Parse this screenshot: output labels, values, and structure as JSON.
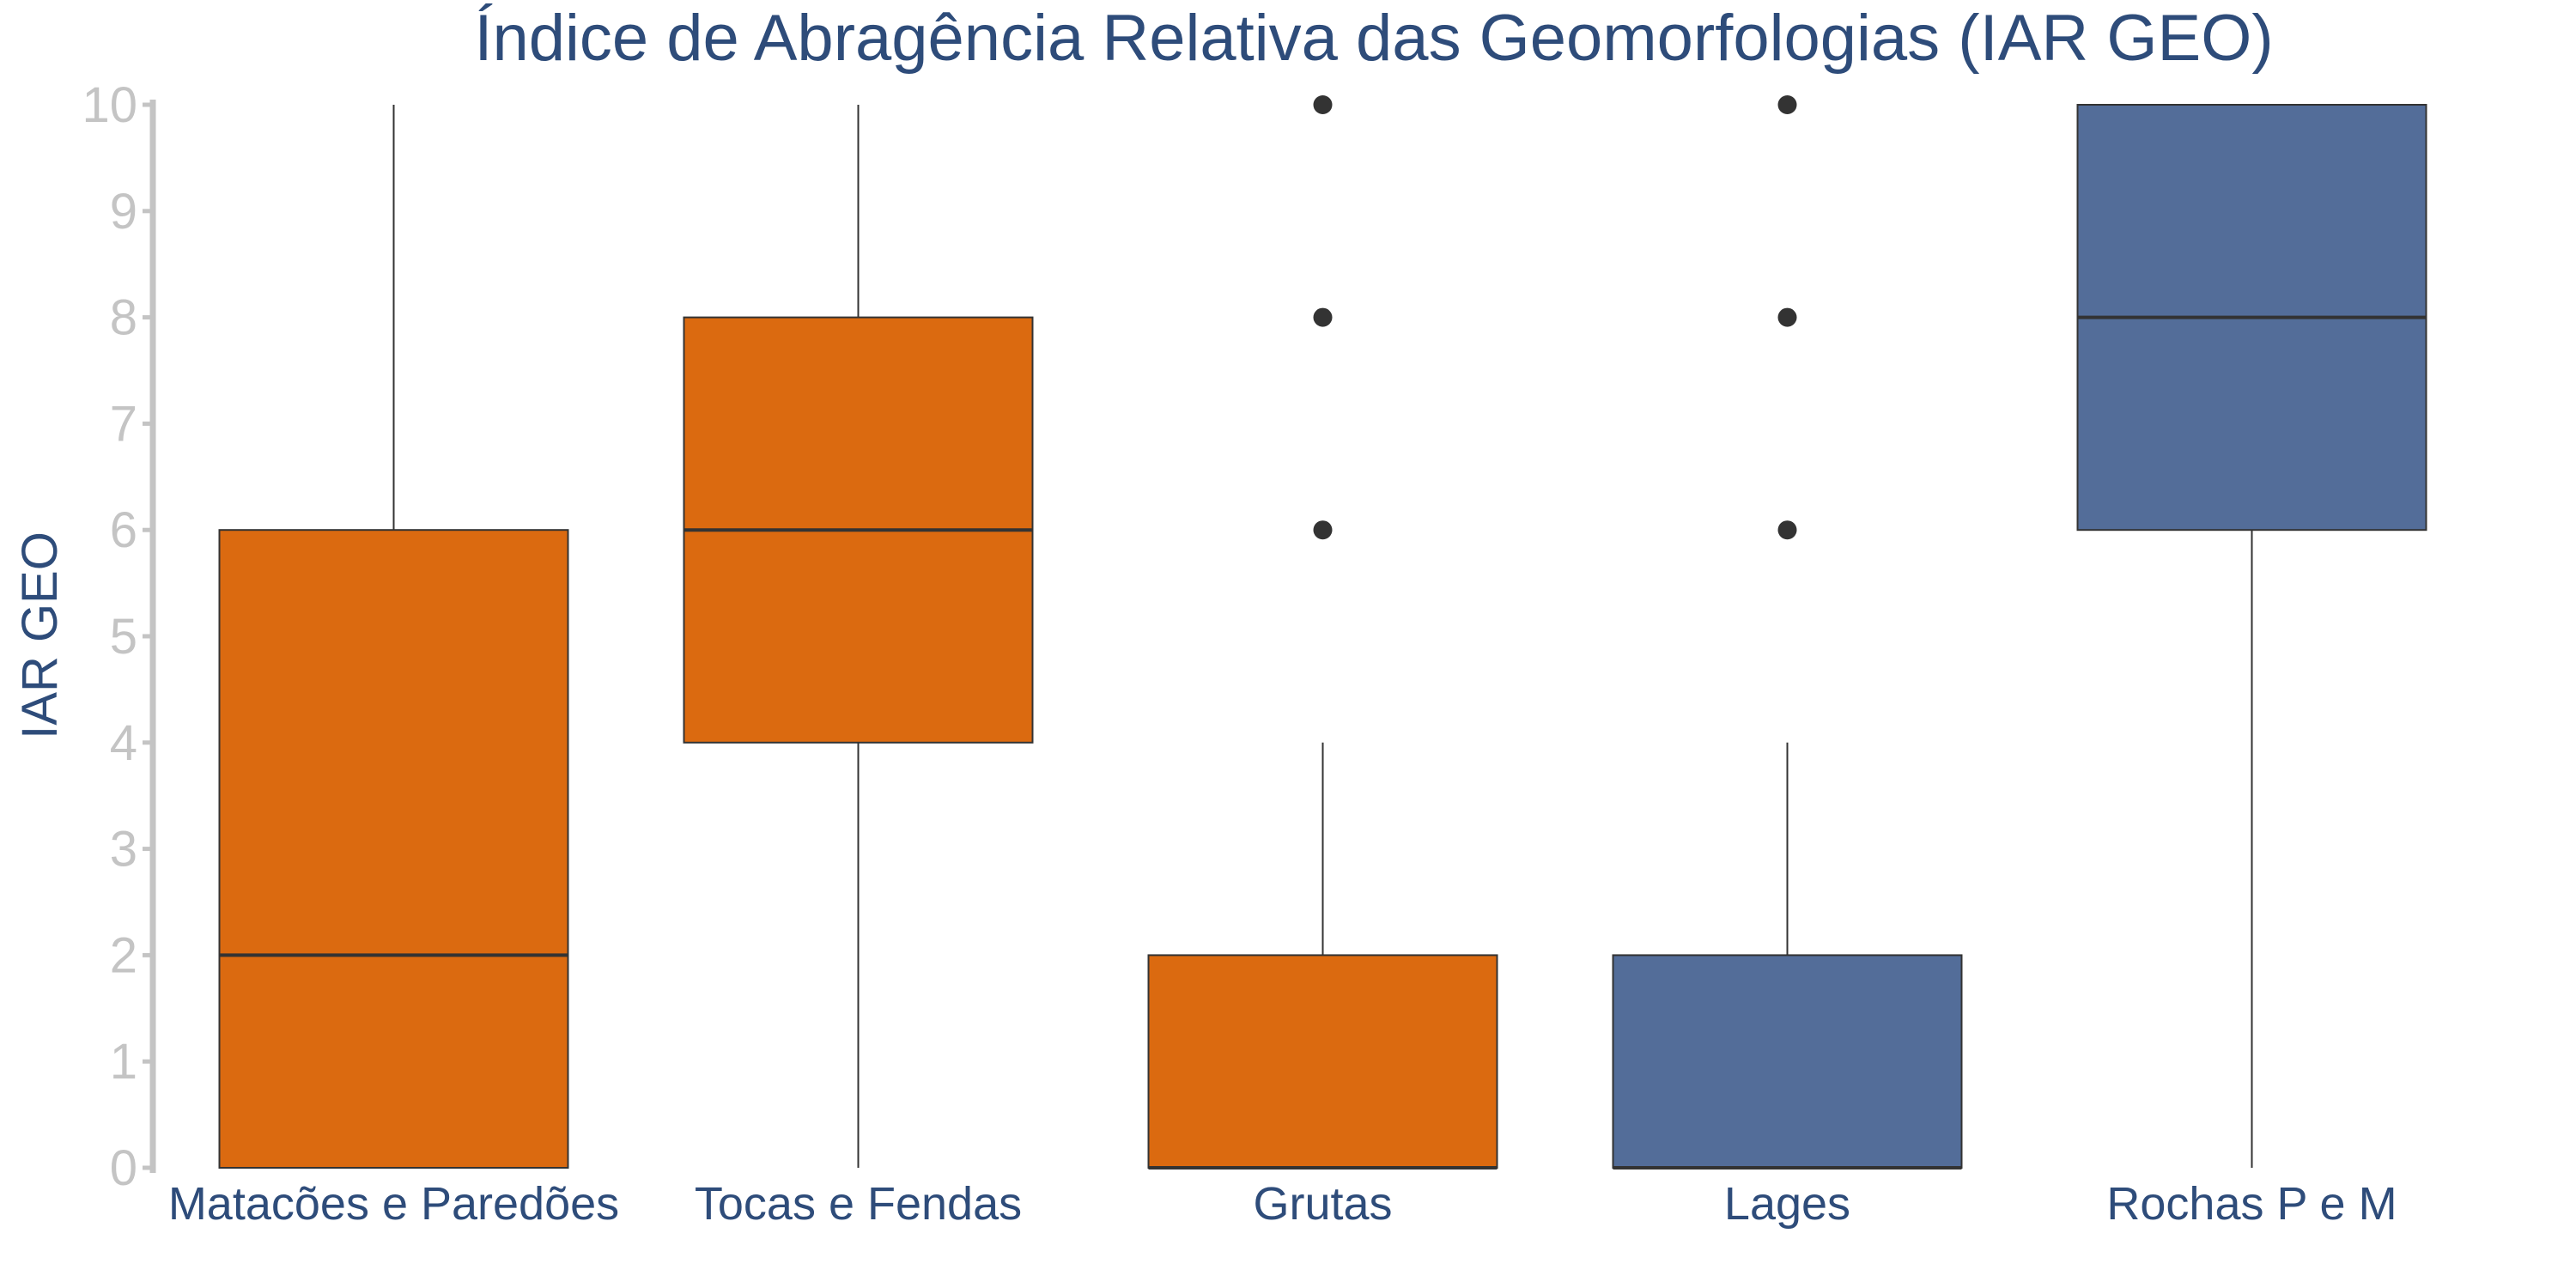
{
  "chart_data": {
    "type": "boxplot",
    "title": "Índice de Abragência Relativa das Geomorfologias (IAR GEO)",
    "xlabel": "",
    "ylabel": "IAR GEO",
    "ylim": [
      0,
      10
    ],
    "yticks": [
      "0",
      "1",
      "2",
      "3",
      "4",
      "5",
      "6",
      "7",
      "8",
      "9",
      "10"
    ],
    "grid": false,
    "legend": "none",
    "colors": {
      "orange": "#db6a10",
      "blue": "#536d99",
      "line": "#333333",
      "axis": "#c4c4c4",
      "text": "#2e4c7a"
    },
    "categories": [
      "Matacões e Paredões",
      "Tocas e Fendas",
      "Grutas",
      "Lages",
      "Rochas P e M"
    ],
    "boxes": [
      {
        "category": "Matacões e Paredões",
        "color": "#db6a10",
        "min": 0,
        "q1": 0,
        "median": 2,
        "q3": 6,
        "max": 10,
        "outliers": []
      },
      {
        "category": "Tocas e Fendas",
        "color": "#db6a10",
        "min": 0,
        "q1": 4,
        "median": 6,
        "q3": 8,
        "max": 10,
        "outliers": []
      },
      {
        "category": "Grutas",
        "color": "#db6a10",
        "min": 0,
        "q1": 0,
        "median": 0,
        "q3": 2,
        "max": 4,
        "outliers": [
          6,
          8,
          10
        ]
      },
      {
        "category": "Lages",
        "color": "#536d99",
        "min": 0,
        "q1": 0,
        "median": 0,
        "q3": 2,
        "max": 4,
        "outliers": [
          6,
          8,
          10
        ]
      },
      {
        "category": "Rochas P e M",
        "color": "#536d99",
        "min": 0,
        "q1": 6,
        "median": 8,
        "q3": 10,
        "max": 10,
        "outliers": []
      }
    ]
  }
}
